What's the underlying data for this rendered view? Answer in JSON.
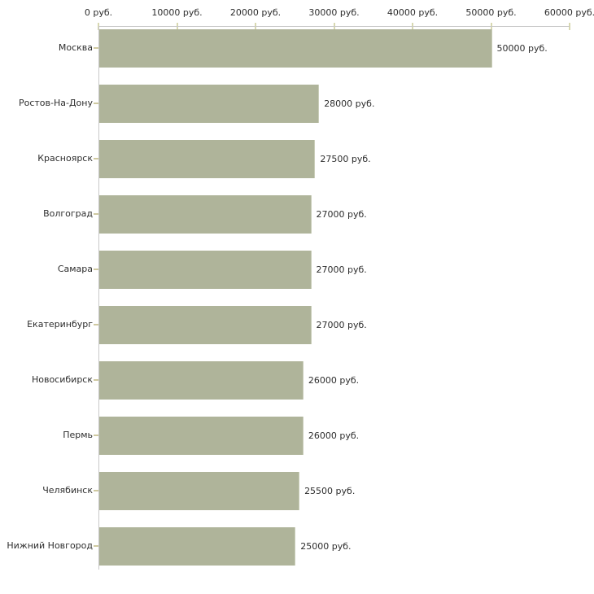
{
  "chart_data": {
    "type": "bar",
    "orientation": "horizontal",
    "title": "",
    "categories": [
      "Москва",
      "Ростов-На-Дону",
      "Красноярск",
      "Волгоград",
      "Самара",
      "Екатеринбург",
      "Новосибирск",
      "Пермь",
      "Челябинск",
      "Нижний Новгород"
    ],
    "values": [
      50000,
      28000,
      27500,
      27000,
      27000,
      27000,
      26000,
      26000,
      25500,
      25000
    ],
    "value_labels": [
      "50000 руб.",
      "28000 руб.",
      "27500 руб.",
      "27000 руб.",
      "27000 руб.",
      "27000 руб.",
      "26000 руб.",
      "26000 руб.",
      "25500 руб.",
      "25000 руб."
    ],
    "x_ticks": [
      0,
      10000,
      20000,
      30000,
      40000,
      50000,
      60000
    ],
    "x_tick_labels": [
      "0 руб.",
      "10000 руб.",
      "20000 руб.",
      "30000 руб.",
      "40000 руб.",
      "50000 руб.",
      "60000 руб."
    ],
    "xlim": [
      0,
      60000
    ],
    "unit": "руб.",
    "grid": false,
    "legend_position": "none",
    "colors": {
      "bar_fill": "#afb49a",
      "bar_edge": "#c9cdb8",
      "axis_line": "#c8c8c8",
      "axis_tick": "#d8d8b0",
      "category_tick": "#cfc9a0",
      "text": "#2d2d2d",
      "background": "#ffffff"
    }
  }
}
